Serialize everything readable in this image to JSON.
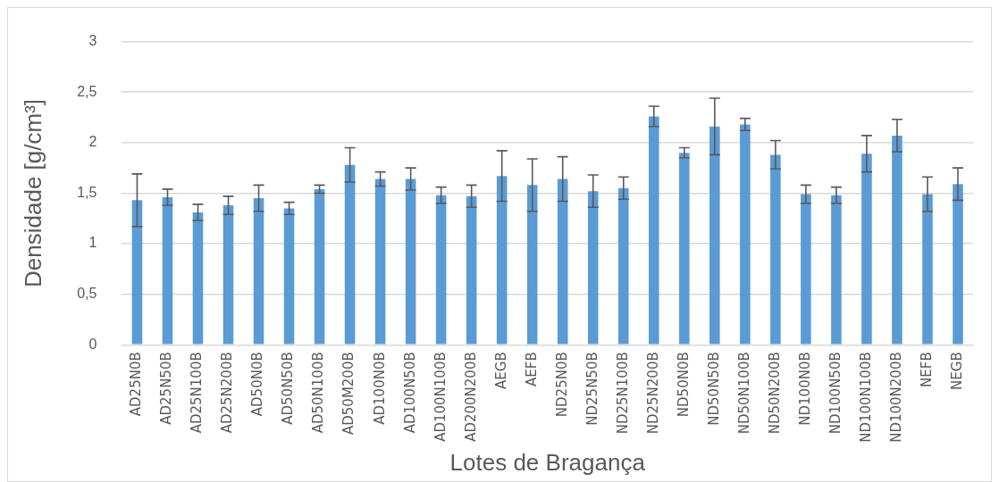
{
  "chart_data": {
    "type": "bar",
    "xlabel": "Lotes de Bragança",
    "ylabel": "Densidade [g/cm³]",
    "categories": [
      "AD25N0B",
      "AD25N50B",
      "AD25N100B",
      "AD25N200B",
      "AD50N0B",
      "AD50N50B",
      "AD50N100B",
      "AD50M200B",
      "AD100N0B",
      "AD100N50B",
      "AD100N100B",
      "AD200N200B",
      "AEGB",
      "AEFB",
      "ND25N0B",
      "ND25N50B",
      "ND25N100B",
      "ND25N200B",
      "ND50N0B",
      "ND50N50B",
      "ND50N100B",
      "ND50N200B",
      "ND100N0B",
      "ND100N50B",
      "ND100N100B",
      "ND100N200B",
      "NEFB",
      "NEGB"
    ],
    "values": [
      1.43,
      1.46,
      1.31,
      1.38,
      1.45,
      1.35,
      1.54,
      1.78,
      1.64,
      1.64,
      1.48,
      1.47,
      1.67,
      1.58,
      1.64,
      1.52,
      1.55,
      2.26,
      1.9,
      2.16,
      2.18,
      1.88,
      1.49,
      1.48,
      1.89,
      2.07,
      1.49,
      1.59
    ],
    "errors": [
      0.26,
      0.08,
      0.08,
      0.09,
      0.13,
      0.06,
      0.04,
      0.17,
      0.07,
      0.11,
      0.08,
      0.11,
      0.25,
      0.26,
      0.22,
      0.16,
      0.11,
      0.1,
      0.05,
      0.28,
      0.06,
      0.14,
      0.09,
      0.08,
      0.18,
      0.16,
      0.17,
      0.16
    ],
    "color": "#5b9bd5",
    "ylim": [
      0,
      3
    ],
    "yticks": [
      0,
      {
        "value": 0.5,
        "label": "0,5"
      },
      1,
      {
        "value": 1.5,
        "label": "1,5"
      },
      2,
      {
        "value": 2.5,
        "label": "2,5"
      },
      3
    ],
    "grid": "y",
    "legend": false
  }
}
